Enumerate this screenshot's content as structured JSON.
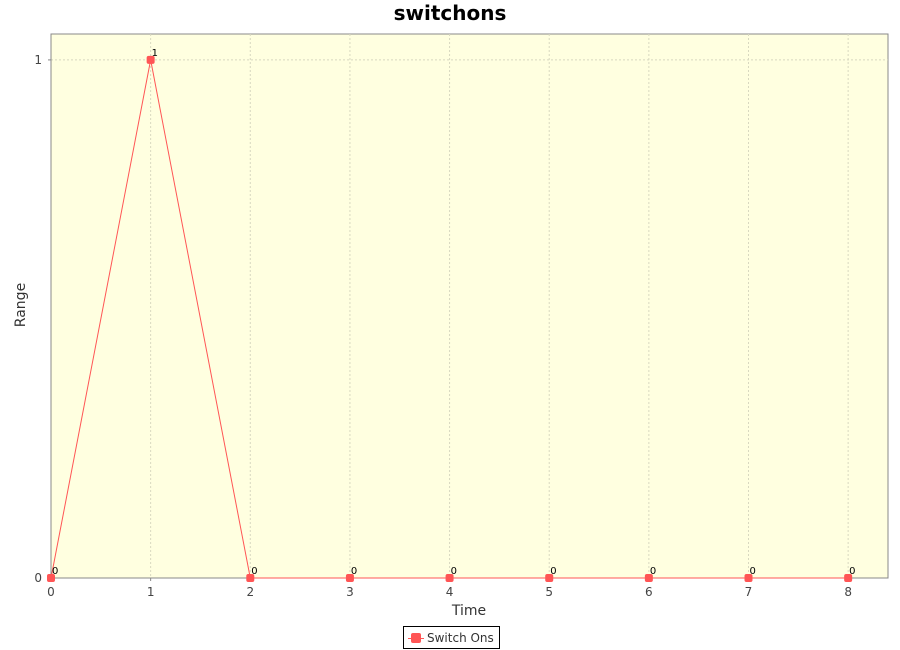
{
  "chart_data": {
    "type": "line",
    "title": "switchons",
    "xlabel": "Time",
    "ylabel": "Range",
    "x": [
      0,
      1,
      2,
      3,
      4,
      5,
      6,
      7,
      8
    ],
    "series": [
      {
        "name": "Switch Ons",
        "values": [
          0,
          1,
          0,
          0,
          0,
          0,
          0,
          0,
          0
        ],
        "color": "#ff5555"
      }
    ],
    "x_ticks": [
      "0",
      "1",
      "2",
      "3",
      "4",
      "5",
      "6",
      "7",
      "8"
    ],
    "y_ticks": [
      "0",
      "1"
    ],
    "xlim": [
      0,
      8.4
    ],
    "ylim": [
      0,
      1.05
    ],
    "grid": true,
    "plot_background": "#ffffe0",
    "grid_color": "#d8d8c0",
    "legend_position": "bottom"
  }
}
